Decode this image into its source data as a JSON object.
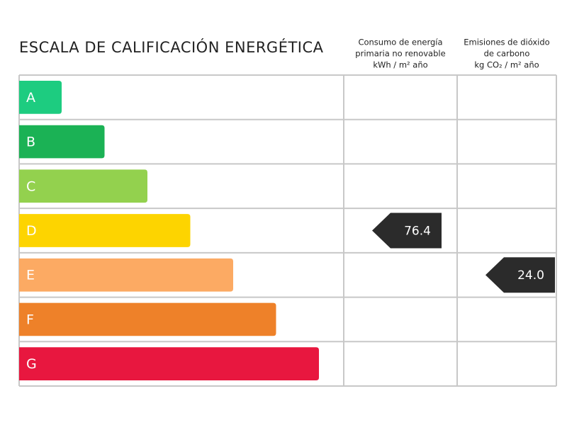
{
  "title": "ESCALA DE CALIFICACIÓN ENERGÉTICA",
  "columns": [
    {
      "header_lines": [
        "Consumo de energía",
        "primaria no renovable",
        "kWh / m² año"
      ]
    },
    {
      "header_lines": [
        "Emisiones de dióxido",
        "de carbono",
        "kg CO₂ / m² año"
      ]
    }
  ],
  "grades": [
    {
      "letter": "A",
      "color": "#1dcc80"
    },
    {
      "letter": "B",
      "color": "#1bb255"
    },
    {
      "letter": "C",
      "color": "#93d14e"
    },
    {
      "letter": "D",
      "color": "#fdd400",
      "consumption": "76.4"
    },
    {
      "letter": "E",
      "color": "#fcaa63",
      "emissions": "24.0"
    },
    {
      "letter": "F",
      "color": "#ee8129"
    },
    {
      "letter": "G",
      "color": "#e8173f"
    }
  ],
  "indicator_color": "#2b2b2b"
}
